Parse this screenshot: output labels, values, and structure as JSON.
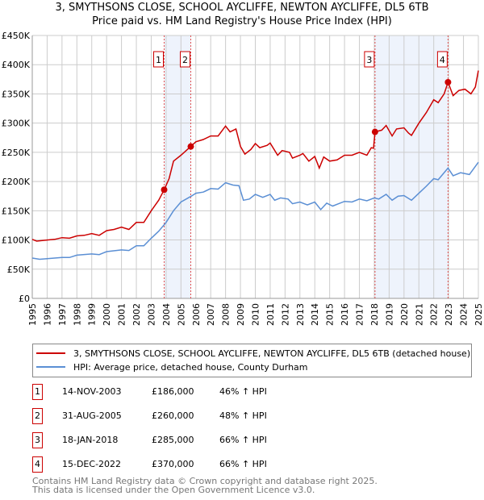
{
  "title": "3, SMYTHSONS CLOSE, SCHOOL AYCLIFFE, NEWTON AYCLIFFE, DL5 6TB",
  "subtitle": "Price paid vs. HM Land Registry's House Price Index (HPI)",
  "colors": {
    "property": "#cc0000",
    "hpi": "#5b8fd4",
    "shade": "#eef3fc"
  },
  "chart_data": {
    "type": "line",
    "xlim": [
      1995,
      2025
    ],
    "ylim": [
      0,
      450000
    ],
    "ytick_labels": [
      "£0",
      "£50K",
      "£100K",
      "£150K",
      "£200K",
      "£250K",
      "£300K",
      "£350K",
      "£400K",
      "£450K"
    ],
    "ytick_values": [
      0,
      50000,
      100000,
      150000,
      200000,
      250000,
      300000,
      350000,
      400000,
      450000
    ],
    "xtick_labels": [
      "1995",
      "1996",
      "1997",
      "1998",
      "1999",
      "2000",
      "2001",
      "2002",
      "2003",
      "2004",
      "2005",
      "2006",
      "2007",
      "2008",
      "2009",
      "2010",
      "2011",
      "2012",
      "2013",
      "2014",
      "2015",
      "2016",
      "2017",
      "2018",
      "2019",
      "2020",
      "2021",
      "2022",
      "2023",
      "2024",
      "2025"
    ],
    "grid": true,
    "series": [
      {
        "name": "3, SMYTHSONS CLOSE, SCHOOL AYCLIFFE, NEWTON AYCLIFFE, DL5 6TB (detached house)",
        "x": [
          1995,
          1995.3,
          1996,
          1996.5,
          1997,
          1997.5,
          1998,
          1998.5,
          1999,
          1999.5,
          2000,
          2000.5,
          2001,
          2001.5,
          2002,
          2002.5,
          2003,
          2003.5,
          2003.87,
          2004.2,
          2004.5,
          2005,
          2005.66,
          2006,
          2006.5,
          2007,
          2007.5,
          2008,
          2008.3,
          2008.7,
          2009,
          2009.3,
          2009.7,
          2010,
          2010.3,
          2010.8,
          2011,
          2011.5,
          2011.8,
          2012.3,
          2012.5,
          2013,
          2013.2,
          2013.6,
          2014,
          2014.3,
          2014.6,
          2015,
          2015.5,
          2016,
          2016.5,
          2017,
          2017.5,
          2017.8,
          2017.95,
          2018.05,
          2018.5,
          2018.8,
          2019.2,
          2019.5,
          2020,
          2020.3,
          2020.5,
          2021,
          2021.5,
          2022,
          2022.3,
          2022.7,
          2022.96,
          2023.3,
          2023.7,
          2024.1,
          2024.5,
          2024.8,
          2025
        ],
        "y": [
          101000,
          98000,
          100000,
          101000,
          104000,
          103000,
          107000,
          108000,
          111000,
          108000,
          116000,
          118000,
          122000,
          118000,
          130000,
          130000,
          150000,
          168000,
          186000,
          205000,
          235000,
          245000,
          260000,
          268000,
          272000,
          278000,
          278000,
          295000,
          285000,
          290000,
          260000,
          247000,
          255000,
          265000,
          258000,
          262000,
          266000,
          245000,
          253000,
          250000,
          240000,
          245000,
          248000,
          235000,
          243000,
          223000,
          242000,
          235000,
          237000,
          245000,
          245000,
          250000,
          245000,
          258000,
          257000,
          285000,
          288000,
          296000,
          278000,
          290000,
          292000,
          283000,
          279000,
          300000,
          318000,
          340000,
          335000,
          350000,
          370000,
          347000,
          356000,
          358000,
          350000,
          362000,
          390000
        ]
      },
      {
        "name": "HPI: Average price, detached house, County Durham",
        "x": [
          1995,
          1995.5,
          1996,
          1997,
          1997.5,
          1998,
          1999,
          1999.5,
          2000,
          2001,
          2001.5,
          2002,
          2002.5,
          2003,
          2003.5,
          2004,
          2004.5,
          2005,
          2005.7,
          2006,
          2006.5,
          2007,
          2007.5,
          2008,
          2008.5,
          2008.9,
          2009.2,
          2009.6,
          2010,
          2010.5,
          2011,
          2011.3,
          2011.7,
          2012.2,
          2012.5,
          2013,
          2013.5,
          2014,
          2014.4,
          2014.8,
          2015.2,
          2016,
          2016.5,
          2017,
          2017.5,
          2018,
          2018.3,
          2018.8,
          2019.2,
          2019.6,
          2020,
          2020.5,
          2021,
          2021.5,
          2022,
          2022.3,
          2022.96,
          2023.3,
          2023.8,
          2024.4,
          2025
        ],
        "y": [
          69000,
          67000,
          68000,
          70000,
          70000,
          74000,
          76000,
          75000,
          80000,
          83000,
          82000,
          90000,
          90000,
          103000,
          115000,
          130000,
          150000,
          165000,
          175000,
          180000,
          182000,
          188000,
          187000,
          198000,
          194000,
          193000,
          168000,
          170000,
          178000,
          173000,
          178000,
          168000,
          172000,
          170000,
          162000,
          165000,
          160000,
          165000,
          152000,
          163000,
          158000,
          166000,
          165000,
          170000,
          167000,
          172000,
          170000,
          178000,
          168000,
          175000,
          176000,
          168000,
          180000,
          192000,
          205000,
          203000,
          223000,
          210000,
          215000,
          212000,
          233000
        ]
      }
    ],
    "annotations": [
      {
        "label": "1",
        "x": 2003.87,
        "y": 186000
      },
      {
        "label": "2",
        "x": 2005.66,
        "y": 260000
      },
      {
        "label": "3",
        "x": 2018.05,
        "y": 285000
      },
      {
        "label": "4",
        "x": 2022.96,
        "y": 370000
      }
    ],
    "shaded_ranges": [
      [
        2003.87,
        2005.66
      ],
      [
        2018.05,
        2022.96
      ]
    ]
  },
  "legend": {
    "property": "3, SMYTHSONS CLOSE, SCHOOL AYCLIFFE, NEWTON AYCLIFFE, DL5 6TB (detached house)",
    "hpi": "HPI: Average price, detached house, County Durham"
  },
  "transactions": [
    {
      "num": "1",
      "date": "14-NOV-2003",
      "price": "£186,000",
      "hpi": "46% ↑ HPI"
    },
    {
      "num": "2",
      "date": "31-AUG-2005",
      "price": "£260,000",
      "hpi": "48% ↑ HPI"
    },
    {
      "num": "3",
      "date": "18-JAN-2018",
      "price": "£285,000",
      "hpi": "66% ↑ HPI"
    },
    {
      "num": "4",
      "date": "15-DEC-2022",
      "price": "£370,000",
      "hpi": "66% ↑ HPI"
    }
  ],
  "footer": {
    "line1": "Contains HM Land Registry data © Crown copyright and database right 2025.",
    "line2": "This data is licensed under the Open Government Licence v3.0."
  }
}
